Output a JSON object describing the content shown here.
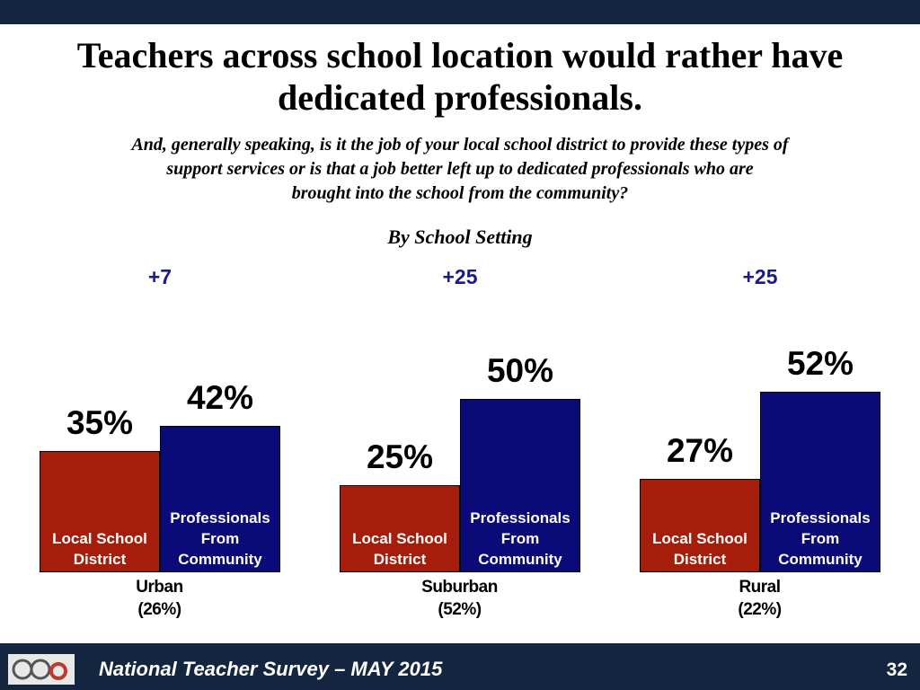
{
  "chart_data": {
    "type": "bar",
    "title": "Teachers across school location would rather have dedicated professionals.",
    "subtitle_lines": [
      "And, generally speaking, is it the job of your local school district to provide these types of",
      "support services or is that a job better left up to dedicated professionals who are",
      "brought into the school from the community?"
    ],
    "heading": "By School Setting",
    "categories": [
      "Urban",
      "Suburban",
      "Rural"
    ],
    "category_shares": [
      "(26%)",
      "(52%)",
      "(22%)"
    ],
    "annotations": [
      "+7",
      "+25",
      "+25"
    ],
    "series": [
      {
        "name": "Local School District",
        "color": "#a61d0b",
        "values": [
          35,
          25,
          27
        ],
        "value_labels": [
          "35%",
          "25%",
          "27%"
        ]
      },
      {
        "name": "Professionals From Community",
        "color": "#0a0a78",
        "values": [
          42,
          50,
          52
        ],
        "value_labels": [
          "42%",
          "50%",
          "52%"
        ]
      }
    ]
  },
  "footer": {
    "text": "National Teacher Survey – MAY 2015",
    "page": "32"
  }
}
